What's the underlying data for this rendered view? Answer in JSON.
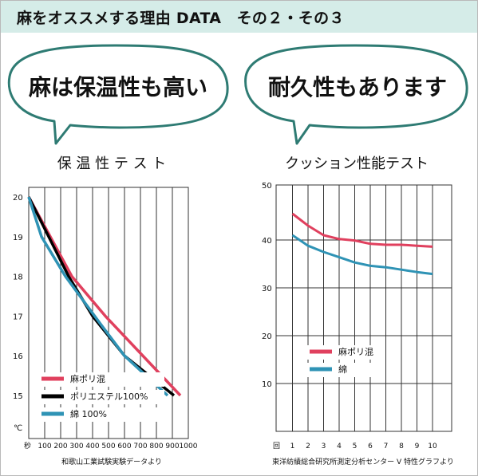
{
  "header": {
    "title": "麻をオススメする理由 DATA　その２・その３"
  },
  "bubbles": [
    {
      "text": "麻は保温性も高い"
    },
    {
      "text": "耐久性もあります"
    }
  ],
  "colors": {
    "accent": "#2e7b73",
    "header_bg": "#d5ece8",
    "asa": "#e0405e",
    "polyester": "#000000",
    "cotton": "#2f93b5"
  },
  "chart_data": [
    {
      "type": "line",
      "title": "保 温 性 テ ス ト",
      "xlabel": "秒",
      "ylabel": "℃",
      "xlim": [
        0,
        1000
      ],
      "ylim": [
        15,
        20
      ],
      "x_ticks": [
        100,
        200,
        300,
        400,
        500,
        600,
        700,
        800,
        900,
        1000
      ],
      "y_ticks": [
        15,
        16,
        17,
        18,
        19,
        20
      ],
      "grid": "vertical",
      "legend_position": "bottom-left",
      "series": [
        {
          "name": "麻ポリ混",
          "color": "#e0405e",
          "points": [
            [
              0,
              20
            ],
            [
              270,
              18
            ],
            [
              480,
              17
            ],
            [
              950,
              15
            ]
          ]
        },
        {
          "name": "ポリエステル100%",
          "color": "#000000",
          "points": [
            [
              0,
              20
            ],
            [
              250,
              18
            ],
            [
              400,
              17
            ],
            [
              600,
              16
            ],
            [
              910,
              15
            ]
          ]
        },
        {
          "name": "綿 100%",
          "color": "#2f93b5",
          "points": [
            [
              0,
              20
            ],
            [
              80,
              19
            ],
            [
              230,
              18
            ],
            [
              450,
              16.8
            ],
            [
              600,
              16
            ],
            [
              870,
              15
            ]
          ]
        }
      ],
      "source": "和歌山工業試験実験データより"
    },
    {
      "type": "line",
      "title": "クッション性能テスト",
      "xlabel": "回",
      "xlim": [
        0,
        10
      ],
      "ylim": [
        0,
        50
      ],
      "x_ticks": [
        1,
        2,
        3,
        4,
        5,
        6,
        7,
        8,
        9,
        10
      ],
      "y_ticks": [
        10,
        20,
        30,
        40,
        50
      ],
      "grid": "both",
      "legend_position": "bottom-left",
      "series": [
        {
          "name": "麻ポリ混",
          "color": "#e0405e",
          "values": [
            45.5,
            43,
            41,
            40.2,
            39.9,
            39.2,
            39,
            39,
            38.8,
            38.6
          ]
        },
        {
          "name": "綿",
          "color": "#2f93b5",
          "values": [
            41,
            38.8,
            37.5,
            36.4,
            35.3,
            34.6,
            34.3,
            33.8,
            33.3,
            32.9
          ]
        }
      ],
      "source": "東洋紡績総合研究所測定分析センター V 特性グラフより"
    }
  ]
}
